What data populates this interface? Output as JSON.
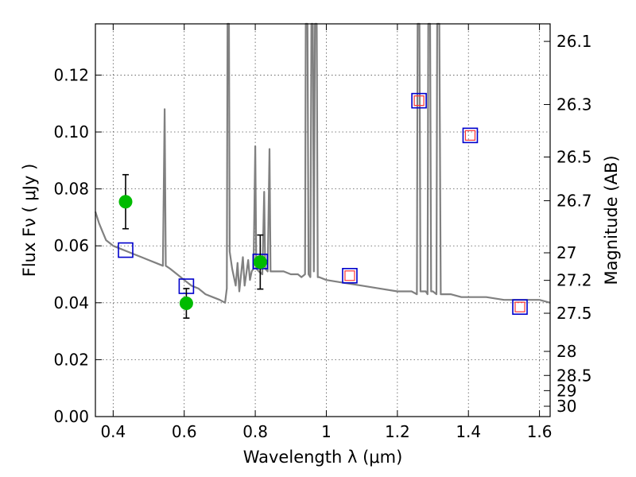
{
  "chart_data": {
    "type": "scatter",
    "xlabel": "Wavelength  λ (μm)",
    "ylabel": "Flux  Fν  ( μJy )",
    "ylabel_right": "Magnitude (AB)",
    "xlim": [
      0.35,
      1.63
    ],
    "ylim": [
      0.0,
      0.138
    ],
    "grid": true,
    "x_ticks": [
      {
        "value": 0.4,
        "label": "0.4"
      },
      {
        "value": 0.6,
        "label": "0.6"
      },
      {
        "value": 0.8,
        "label": "0.8"
      },
      {
        "value": 1.0,
        "label": "1"
      },
      {
        "value": 1.2,
        "label": "1.2"
      },
      {
        "value": 1.4,
        "label": "1.4"
      },
      {
        "value": 1.6,
        "label": "1.6"
      }
    ],
    "y_ticks": [
      {
        "value": 0.0,
        "label": "0.00"
      },
      {
        "value": 0.02,
        "label": "0.02"
      },
      {
        "value": 0.04,
        "label": "0.04"
      },
      {
        "value": 0.06,
        "label": "0.06"
      },
      {
        "value": 0.08,
        "label": "0.08"
      },
      {
        "value": 0.1,
        "label": "0.10"
      },
      {
        "value": 0.12,
        "label": "0.12"
      }
    ],
    "right_ticks": [
      {
        "mag": 26.1,
        "label": "26.1"
      },
      {
        "mag": 26.3,
        "label": "26.3"
      },
      {
        "mag": 26.5,
        "label": "26.5"
      },
      {
        "mag": 26.7,
        "label": "26.7"
      },
      {
        "mag": 27.0,
        "label": "27"
      },
      {
        "mag": 27.2,
        "label": "27.2"
      },
      {
        "mag": 27.5,
        "label": "27.5"
      },
      {
        "mag": 28.0,
        "label": "28"
      },
      {
        "mag": 28.5,
        "label": "28.5"
      },
      {
        "mag": 29.0,
        "label": "29"
      },
      {
        "mag": 30.0,
        "label": "30"
      }
    ],
    "colors": {
      "spectrum": "#808080",
      "observed": "#00bb00",
      "model_box": "#0000cc",
      "model_inner": "#ff3333",
      "errorbar": "#000000"
    },
    "spectrum": [
      [
        0.35,
        0.072
      ],
      [
        0.36,
        0.068
      ],
      [
        0.37,
        0.065
      ],
      [
        0.38,
        0.062
      ],
      [
        0.39,
        0.061
      ],
      [
        0.4,
        0.06
      ],
      [
        0.42,
        0.059
      ],
      [
        0.44,
        0.058
      ],
      [
        0.46,
        0.057
      ],
      [
        0.48,
        0.056
      ],
      [
        0.5,
        0.055
      ],
      [
        0.52,
        0.054
      ],
      [
        0.54,
        0.053
      ],
      [
        0.545,
        0.108
      ],
      [
        0.548,
        0.053
      ],
      [
        0.56,
        0.052
      ],
      [
        0.58,
        0.05
      ],
      [
        0.6,
        0.048
      ],
      [
        0.62,
        0.046
      ],
      [
        0.64,
        0.045
      ],
      [
        0.66,
        0.043
      ],
      [
        0.68,
        0.042
      ],
      [
        0.7,
        0.041
      ],
      [
        0.715,
        0.04
      ],
      [
        0.72,
        0.045
      ],
      [
        0.722,
        0.138
      ],
      [
        0.726,
        0.138
      ],
      [
        0.728,
        0.058
      ],
      [
        0.735,
        0.052
      ],
      [
        0.745,
        0.046
      ],
      [
        0.75,
        0.054
      ],
      [
        0.755,
        0.044
      ],
      [
        0.765,
        0.056
      ],
      [
        0.77,
        0.046
      ],
      [
        0.78,
        0.055
      ],
      [
        0.785,
        0.048
      ],
      [
        0.79,
        0.051
      ],
      [
        0.795,
        0.052
      ],
      [
        0.8,
        0.095
      ],
      [
        0.803,
        0.052
      ],
      [
        0.81,
        0.051
      ],
      [
        0.82,
        0.05
      ],
      [
        0.825,
        0.079
      ],
      [
        0.828,
        0.052
      ],
      [
        0.835,
        0.051
      ],
      [
        0.84,
        0.094
      ],
      [
        0.843,
        0.051
      ],
      [
        0.85,
        0.051
      ],
      [
        0.86,
        0.051
      ],
      [
        0.88,
        0.051
      ],
      [
        0.9,
        0.05
      ],
      [
        0.92,
        0.05
      ],
      [
        0.93,
        0.049
      ],
      [
        0.94,
        0.05
      ],
      [
        0.942,
        0.138
      ],
      [
        0.947,
        0.138
      ],
      [
        0.95,
        0.05
      ],
      [
        0.955,
        0.049
      ],
      [
        0.958,
        0.138
      ],
      [
        0.962,
        0.138
      ],
      [
        0.965,
        0.051
      ],
      [
        0.968,
        0.138
      ],
      [
        0.973,
        0.138
      ],
      [
        0.976,
        0.049
      ],
      [
        0.98,
        0.049
      ],
      [
        1.0,
        0.048
      ],
      [
        1.05,
        0.047
      ],
      [
        1.1,
        0.046
      ],
      [
        1.15,
        0.045
      ],
      [
        1.2,
        0.044
      ],
      [
        1.24,
        0.044
      ],
      [
        1.255,
        0.043
      ],
      [
        1.257,
        0.138
      ],
      [
        1.262,
        0.138
      ],
      [
        1.265,
        0.044
      ],
      [
        1.28,
        0.044
      ],
      [
        1.285,
        0.043
      ],
      [
        1.287,
        0.138
      ],
      [
        1.292,
        0.138
      ],
      [
        1.295,
        0.044
      ],
      [
        1.3,
        0.044
      ],
      [
        1.31,
        0.043
      ],
      [
        1.312,
        0.138
      ],
      [
        1.318,
        0.138
      ],
      [
        1.322,
        0.043
      ],
      [
        1.35,
        0.043
      ],
      [
        1.38,
        0.042
      ],
      [
        1.4,
        0.042
      ],
      [
        1.45,
        0.042
      ],
      [
        1.5,
        0.041
      ],
      [
        1.55,
        0.041
      ],
      [
        1.6,
        0.041
      ],
      [
        1.63,
        0.04
      ]
    ],
    "observed": [
      {
        "x": 0.435,
        "y": 0.0755,
        "err": 0.0095
      },
      {
        "x": 0.606,
        "y": 0.0398,
        "err": 0.0052
      },
      {
        "x": 0.814,
        "y": 0.0543,
        "err": 0.0095
      }
    ],
    "model": [
      {
        "x": 0.435,
        "y": 0.0585,
        "inner": false
      },
      {
        "x": 0.606,
        "y": 0.0458,
        "inner": false
      },
      {
        "x": 0.814,
        "y": 0.0545,
        "inner": false
      },
      {
        "x": 1.066,
        "y": 0.0495,
        "inner": true
      },
      {
        "x": 1.261,
        "y": 0.111,
        "inner": true
      },
      {
        "x": 1.405,
        "y": 0.0988,
        "inner": true
      },
      {
        "x": 1.545,
        "y": 0.0385,
        "inner": true
      }
    ]
  }
}
